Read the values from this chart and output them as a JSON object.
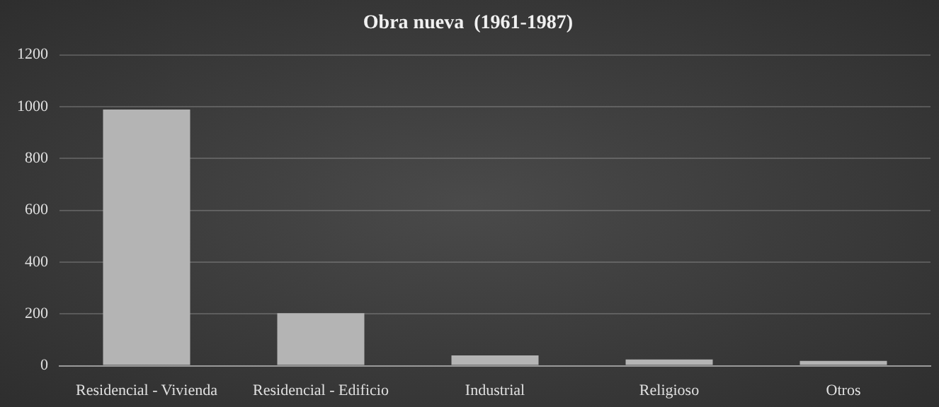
{
  "chart_data": {
    "type": "bar",
    "title": "Obra nueva  (1961-1987)",
    "categories": [
      "Residencial - Vivienda",
      "Residencial - Edificio",
      "Industrial",
      "Religioso",
      "Otros"
    ],
    "values": [
      989,
      203,
      40,
      24,
      19
    ],
    "color": "#b4b4b4",
    "ylim": [
      0,
      1200
    ],
    "yticks": [
      0,
      200,
      400,
      600,
      800,
      1000,
      1200
    ],
    "grid": "y",
    "legend": false
  }
}
